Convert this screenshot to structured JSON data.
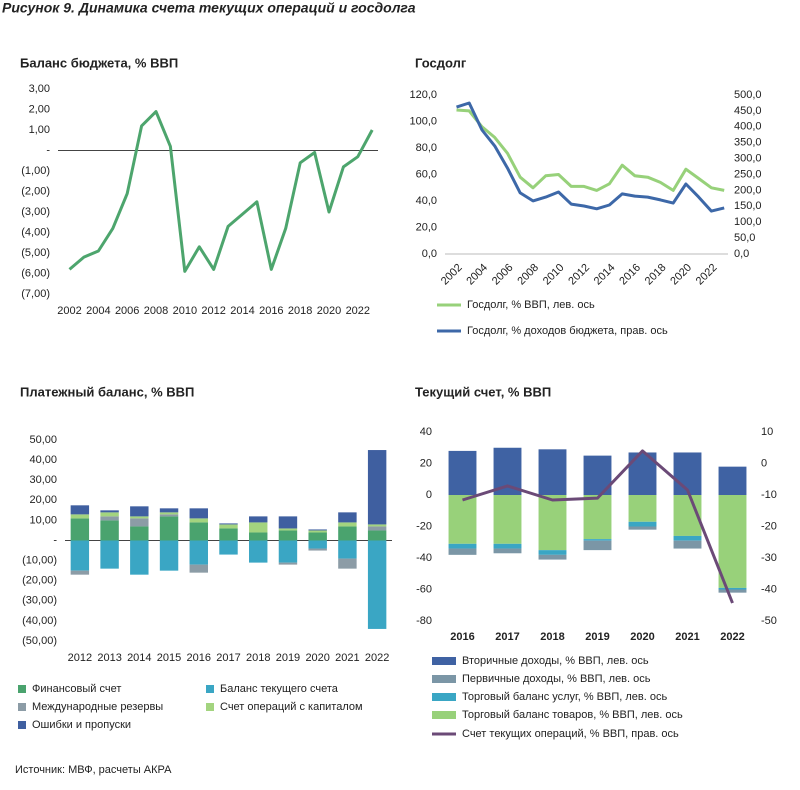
{
  "title": "Рисунок 9. Динамика счета текущих операций и госдолга",
  "source": "Источник: МВФ, расчеты АКРА",
  "chart_data": [
    {
      "type": "line",
      "title": "Баланс бюджета, % ВВП",
      "x": [
        2002,
        2003,
        2004,
        2005,
        2006,
        2007,
        2008,
        2009,
        2010,
        2011,
        2012,
        2013,
        2014,
        2015,
        2016,
        2017,
        2018,
        2019,
        2020,
        2021,
        2022,
        2023
      ],
      "xlim": [
        2001.2,
        2023.4
      ],
      "xticks": [
        2002,
        2004,
        2006,
        2008,
        2010,
        2012,
        2014,
        2016,
        2018,
        2020,
        2022
      ],
      "series": [
        {
          "name": null,
          "color": "#4da56d",
          "values": [
            -5.8,
            -5.2,
            -4.9,
            -3.8,
            -2.1,
            1.2,
            1.9,
            0.2,
            -5.9,
            -4.7,
            -5.8,
            -3.7,
            -3.1,
            -2.5,
            -5.8,
            -3.8,
            -0.6,
            -0.1,
            -3.0,
            -0.8,
            -0.3,
            1.0
          ]
        }
      ],
      "ylim": [
        -7,
        3
      ],
      "yticks": [
        {
          "value": 3,
          "label": "3,00"
        },
        {
          "value": 2,
          "label": "2,00"
        },
        {
          "value": 1,
          "label": "1,00"
        },
        {
          "value": 0,
          "label": "-"
        },
        {
          "value": -1,
          "label": "(1,00)"
        },
        {
          "value": -2,
          "label": "(2,00)"
        },
        {
          "value": -3,
          "label": "(3,00)"
        },
        {
          "value": -4,
          "label": "(4,00)"
        },
        {
          "value": -5,
          "label": "(5,00)"
        },
        {
          "value": -6,
          "label": "(6,00)"
        },
        {
          "value": -7,
          "label": "(7,00)"
        }
      ],
      "zero_line": true
    },
    {
      "type": "line",
      "title": "Госдолг",
      "x": [
        2002,
        2003,
        2004,
        2005,
        2006,
        2007,
        2008,
        2009,
        2010,
        2011,
        2012,
        2013,
        2014,
        2015,
        2016,
        2017,
        2018,
        2019,
        2020,
        2021,
        2022,
        2023
      ],
      "xlim": [
        2001.1,
        2023.3
      ],
      "xticks": [
        2002,
        2004,
        2006,
        2008,
        2010,
        2012,
        2014,
        2016,
        2018,
        2020,
        2022
      ],
      "series": [
        {
          "name": "Госдолг, % ВВП, лев. ось",
          "color": "#97d17a",
          "values": [
            108.7,
            108,
            96,
            88,
            76,
            58,
            50,
            59,
            60,
            51,
            51,
            48,
            53,
            67,
            59,
            58,
            54,
            48,
            64,
            57,
            50,
            48
          ]
        },
        {
          "name": "Госдолг, % доходов бюджета, прав. ось",
          "color": "#3d68a8",
          "axis": "y2",
          "values": [
            462,
            475,
            390,
            340,
            270,
            192,
            167,
            179,
            195,
            157,
            151,
            142,
            154,
            189,
            182,
            179,
            170,
            160,
            220,
            179,
            135,
            145
          ]
        }
      ],
      "ylim": [
        0,
        120
      ],
      "yticks": [
        {
          "value": 0,
          "label": "0,0"
        },
        {
          "value": 20,
          "label": "20,0"
        },
        {
          "value": 40,
          "label": "40,0"
        },
        {
          "value": 60,
          "label": "60,0"
        },
        {
          "value": 80,
          "label": "80,0"
        },
        {
          "value": 100,
          "label": "100,0"
        },
        {
          "value": 120,
          "label": "120,0"
        }
      ],
      "y2lim": [
        0,
        500
      ],
      "y2ticks": [
        {
          "value": 0,
          "label": "0,0"
        },
        {
          "value": 50,
          "label": "50,0"
        },
        {
          "value": 100,
          "label": "100,0"
        },
        {
          "value": 150,
          "label": "150,0"
        },
        {
          "value": 200,
          "label": "200,0"
        },
        {
          "value": 250,
          "label": "250,0"
        },
        {
          "value": 300,
          "label": "300,0"
        },
        {
          "value": 350,
          "label": "350,0"
        },
        {
          "value": 400,
          "label": "400,0"
        },
        {
          "value": 450,
          "label": "450,0"
        },
        {
          "value": 500,
          "label": "500,0"
        }
      ]
    },
    {
      "type": "bar",
      "stacked": true,
      "title": "Платежный баланс, % ВВП",
      "categories": [
        "2012",
        "2013",
        "2014",
        "2015",
        "2016",
        "2017",
        "2018",
        "2019",
        "2020",
        "2021",
        "2022"
      ],
      "series": [
        {
          "name": "Баланс текущего счета",
          "color": "#3aa6c4",
          "values": [
            -15,
            -14,
            -17,
            -15,
            -12,
            -7,
            -11,
            -11,
            -4,
            -9,
            -44
          ]
        },
        {
          "name": "Финансовый счет",
          "color": "#4aa36e",
          "values": [
            11,
            10,
            7,
            12,
            9,
            6,
            4,
            5,
            4,
            7,
            5
          ]
        },
        {
          "name": "Международные резервы",
          "color": "#8c9ca6",
          "values": [
            -2,
            2,
            4,
            1,
            -4,
            0,
            0,
            -1,
            -1,
            -5,
            2
          ]
        },
        {
          "name": "Счет операций с капиталом",
          "color": "#a3d47f",
          "values": [
            2,
            2,
            1,
            1,
            2,
            2,
            5,
            1,
            1,
            2,
            1
          ]
        },
        {
          "name": "Ошибки и пропуски",
          "color": "#3f5fa0",
          "values": [
            4.5,
            1,
            5,
            2,
            5,
            0.5,
            3,
            6,
            0.5,
            5,
            37
          ]
        }
      ],
      "ylim": [
        -50,
        50
      ],
      "yticks": [
        {
          "value": 50,
          "label": "50,00"
        },
        {
          "value": 40,
          "label": "40,00"
        },
        {
          "value": 30,
          "label": "30,00"
        },
        {
          "value": 20,
          "label": "20,00"
        },
        {
          "value": 10,
          "label": "10,00"
        },
        {
          "value": 0,
          "label": "-"
        },
        {
          "value": -10,
          "label": "(10,00)"
        },
        {
          "value": -20,
          "label": "(20,00)"
        },
        {
          "value": -30,
          "label": "(30,00)"
        },
        {
          "value": -40,
          "label": "(40,00)"
        },
        {
          "value": -50,
          "label": "(50,00)"
        }
      ],
      "zero_line": true
    },
    {
      "type": "bar",
      "stacked": true,
      "title": "Текущий счет, % ВВП",
      "categories": [
        "2016",
        "2017",
        "2018",
        "2019",
        "2020",
        "2021",
        "2022"
      ],
      "series": [
        {
          "name": "Торговый баланс товаров, % ВВП, лев. ось",
          "color": "#98d17a",
          "values": [
            -31,
            -31,
            -35,
            -28,
            -17,
            -26,
            -59
          ]
        },
        {
          "name": "Торговый баланс услуг, % ВВП, лев. ось",
          "color": "#3aa6c4",
          "values": [
            -3,
            -3,
            -3,
            -1,
            -3,
            -3,
            -1
          ]
        },
        {
          "name": "Первичные доходы, % ВВП, лев. ось",
          "color": "#7b96a6",
          "values": [
            -4,
            -3,
            -3,
            -6,
            -2,
            -5,
            -2
          ]
        },
        {
          "name": "Вторичные доходы, % ВВП, лев. ось",
          "color": "#3f62a3",
          "values": [
            28,
            30,
            29,
            25,
            27,
            27,
            18
          ]
        },
        {
          "name": "Счет текущих операций, % ВВП, прав. ось",
          "color": "#6b4a77",
          "type": "line",
          "axis": "y2",
          "values": [
            -11.6,
            -7.1,
            -11.6,
            -11,
            4,
            -8.4,
            -44.3
          ]
        }
      ],
      "ylim": [
        -80,
        40
      ],
      "yticks": [
        40,
        20,
        0,
        -20,
        -40,
        -60,
        -80
      ],
      "y2lim": [
        -50,
        10
      ],
      "y2ticks": [
        10,
        0,
        -10,
        -20,
        -30,
        -40,
        -50
      ]
    }
  ]
}
